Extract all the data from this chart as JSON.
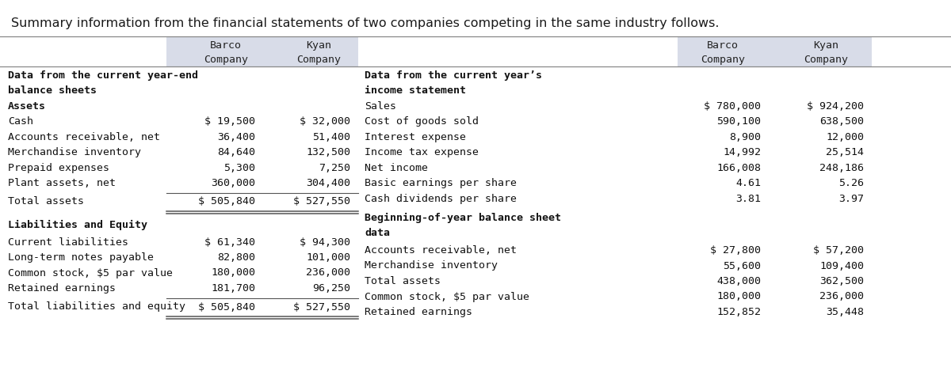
{
  "title": "Summary information from the financial statements of two companies competing in the same industry follows.",
  "background_color": "#ffffff",
  "header_bg": "#d8dce8",
  "left_section": {
    "section1_header_line1": "Data from the current year-end",
    "section1_header_line2": "balance sheets",
    "subsection1": "Assets",
    "rows1": [
      {
        "label": "Cash",
        "barco": "$ 19,500",
        "kyan": "$ 32,000"
      },
      {
        "label": "Accounts receivable, net",
        "barco": "36,400",
        "kyan": "51,400"
      },
      {
        "label": "Merchandise inventory",
        "barco": "84,640",
        "kyan": "132,500"
      },
      {
        "label": "Prepaid expenses",
        "barco": "5,300",
        "kyan": "7,250"
      },
      {
        "label": "Plant assets, net",
        "barco": "360,000",
        "kyan": "304,400"
      }
    ],
    "total1": {
      "label": "Total assets",
      "barco": "$ 505,840",
      "kyan": "$ 527,550"
    },
    "subsection2": "Liabilities and Equity",
    "rows2": [
      {
        "label": "Current liabilities",
        "barco": "$ 61,340",
        "kyan": "$ 94,300"
      },
      {
        "label": "Long-term notes payable",
        "barco": "82,800",
        "kyan": "101,000"
      },
      {
        "label": "Common stock, $5 par value",
        "barco": "180,000",
        "kyan": "236,000"
      },
      {
        "label": "Retained earnings",
        "barco": "181,700",
        "kyan": "96,250"
      }
    ],
    "total2": {
      "label": "Total liabilities and equity",
      "barco": "$ 505,840",
      "kyan": "$ 527,550"
    }
  },
  "right_section": {
    "section1_header_line1": "Data from the current year’s",
    "section1_header_line2": "income statement",
    "rows1": [
      {
        "label": "Sales",
        "barco": "$ 780,000",
        "kyan": "$ 924,200"
      },
      {
        "label": "Cost of goods sold",
        "barco": "590,100",
        "kyan": "638,500"
      },
      {
        "label": "Interest expense",
        "barco": "8,900",
        "kyan": "12,000"
      },
      {
        "label": "Income tax expense",
        "barco": "14,992",
        "kyan": "25,514"
      },
      {
        "label": "Net income",
        "barco": "166,008",
        "kyan": "248,186"
      },
      {
        "label": "Basic earnings per share",
        "barco": "4.61",
        "kyan": "5.26"
      },
      {
        "label": "Cash dividends per share",
        "barco": "3.81",
        "kyan": "3.97"
      }
    ],
    "section2_header_line1": "Beginning-of-year balance sheet",
    "section2_header_line2": "data",
    "rows2": [
      {
        "label": "Accounts receivable, net",
        "barco": "$ 27,800",
        "kyan": "$ 57,200"
      },
      {
        "label": "Merchandise inventory",
        "barco": "55,600",
        "kyan": "109,400"
      },
      {
        "label": "Total assets",
        "barco": "438,000",
        "kyan": "362,500"
      },
      {
        "label": "Common stock, $5 par value",
        "barco": "180,000",
        "kyan": "236,000"
      },
      {
        "label": "Retained earnings",
        "barco": "152,852",
        "kyan": "35,448"
      }
    ]
  }
}
